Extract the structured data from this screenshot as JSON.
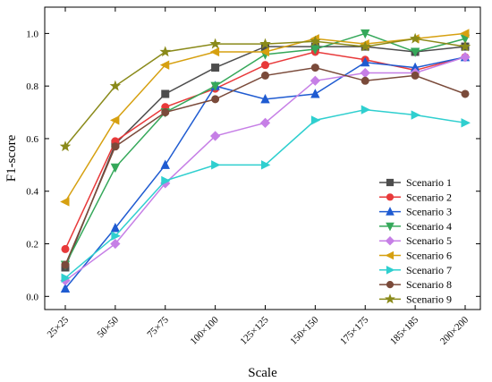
{
  "chart_data": {
    "type": "line",
    "xlabel": "Scale",
    "ylabel": "F1-score",
    "categories": [
      "25×25",
      "50×50",
      "75×75",
      "100×100",
      "125×125",
      "150×150",
      "175×175",
      "185×185",
      "200×200"
    ],
    "ylim": [
      -0.05,
      1.1
    ],
    "yticks": [
      "0.0",
      "0.2",
      "0.4",
      "0.6",
      "0.8",
      "1.0"
    ],
    "grid": false,
    "legend_position": "bottom-right",
    "series": [
      {
        "name": "Scenario 1",
        "color": "#4d4d4d",
        "marker": "square",
        "values": [
          0.11,
          0.58,
          0.77,
          0.87,
          0.95,
          0.95,
          0.95,
          0.93,
          0.95
        ]
      },
      {
        "name": "Scenario 2",
        "color": "#e8393a",
        "marker": "circle",
        "values": [
          0.18,
          0.59,
          0.72,
          0.79,
          0.88,
          0.93,
          0.9,
          0.86,
          0.91
        ]
      },
      {
        "name": "Scenario 3",
        "color": "#1f5bd1",
        "marker": "triangle-up",
        "values": [
          0.03,
          0.26,
          0.5,
          0.8,
          0.75,
          0.77,
          0.89,
          0.87,
          0.91
        ]
      },
      {
        "name": "Scenario 4",
        "color": "#35a85a",
        "marker": "triangle-down",
        "values": [
          0.12,
          0.49,
          0.7,
          0.8,
          0.92,
          0.94,
          1.0,
          0.93,
          0.98
        ]
      },
      {
        "name": "Scenario 5",
        "color": "#c67fe6",
        "marker": "diamond",
        "values": [
          0.06,
          0.2,
          0.43,
          0.61,
          0.66,
          0.82,
          0.85,
          0.85,
          0.91
        ]
      },
      {
        "name": "Scenario 6",
        "color": "#d6a010",
        "marker": "triangle-left",
        "values": [
          0.36,
          0.67,
          0.88,
          0.93,
          0.93,
          0.98,
          0.96,
          0.98,
          1.0
        ]
      },
      {
        "name": "Scenario 7",
        "color": "#2fcfcf",
        "marker": "triangle-right",
        "values": [
          0.07,
          0.23,
          0.44,
          0.5,
          0.5,
          0.67,
          0.71,
          0.69,
          0.66
        ]
      },
      {
        "name": "Scenario 8",
        "color": "#7a4a3a",
        "marker": "circle",
        "values": [
          0.12,
          0.57,
          0.7,
          0.75,
          0.84,
          0.87,
          0.82,
          0.84,
          0.77
        ]
      },
      {
        "name": "Scenario 9",
        "color": "#8a8a1a",
        "marker": "star",
        "values": [
          0.57,
          0.8,
          0.93,
          0.96,
          0.96,
          0.97,
          0.95,
          0.98,
          0.95
        ]
      }
    ]
  }
}
